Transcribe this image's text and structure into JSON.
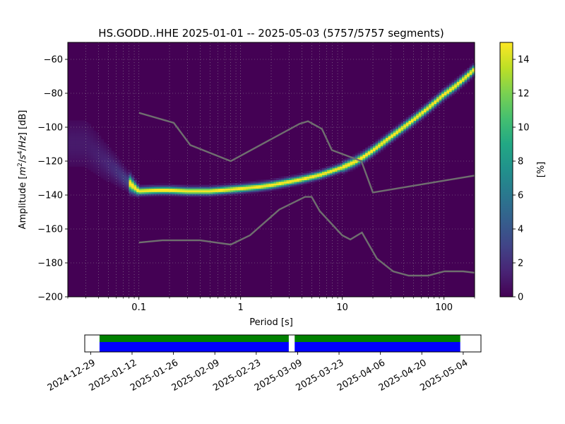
{
  "chart_data": [
    {
      "type": "heatmap",
      "title": "HS.GODD..HHE   2025-01-01 -- 2025-05-03  (5757/5757 segments)",
      "xlabel": "Period [s]",
      "ylabel": "Amplitude [m²/s⁴/Hz] [dB]",
      "ylabel_parts": [
        "Amplitude [",
        "m",
        "2",
        "/",
        "s",
        "4",
        "/",
        "Hz",
        "] [dB]"
      ],
      "x_scale": "log",
      "xlim": [
        0.02,
        200
      ],
      "ylim": [
        -200,
        -50
      ],
      "x_ticks": [
        {
          "value": 0.1,
          "label": "0.1"
        },
        {
          "value": 1,
          "label": "1"
        },
        {
          "value": 10,
          "label": "10"
        },
        {
          "value": 100,
          "label": "100"
        }
      ],
      "y_ticks": [
        {
          "value": -60,
          "label": "−60"
        },
        {
          "value": -80,
          "label": "−80"
        },
        {
          "value": -100,
          "label": "−100"
        },
        {
          "value": -120,
          "label": "−120"
        },
        {
          "value": -140,
          "label": "−140"
        },
        {
          "value": -160,
          "label": "−160"
        },
        {
          "value": -180,
          "label": "−180"
        },
        {
          "value": -200,
          "label": "−200"
        }
      ],
      "grid": true,
      "background_color": "#440154",
      "mode_curve": [
        [
          0.03,
          -110
        ],
        [
          0.04,
          -117
        ],
        [
          0.06,
          -126
        ],
        [
          0.08,
          -133
        ],
        [
          0.1,
          -138
        ],
        [
          0.15,
          -137.5
        ],
        [
          0.2,
          -137.5
        ],
        [
          0.3,
          -138
        ],
        [
          0.5,
          -138
        ],
        [
          0.8,
          -137
        ],
        [
          1,
          -136.5
        ],
        [
          1.5,
          -135.5
        ],
        [
          2,
          -134.5
        ],
        [
          3,
          -132.5
        ],
        [
          4,
          -131
        ],
        [
          6,
          -128.5
        ],
        [
          8,
          -126
        ],
        [
          10,
          -124
        ],
        [
          13,
          -121
        ],
        [
          16,
          -118
        ],
        [
          20,
          -114
        ],
        [
          30,
          -106
        ],
        [
          50,
          -96
        ],
        [
          70,
          -89
        ],
        [
          100,
          -81
        ],
        [
          130,
          -76
        ],
        [
          170,
          -70
        ],
        [
          200,
          -66
        ]
      ],
      "noise_model_upper": [
        [
          0.1,
          -91.5
        ],
        [
          0.22,
          -97.4
        ],
        [
          0.32,
          -110.5
        ],
        [
          0.8,
          -120
        ],
        [
          3.8,
          -98
        ],
        [
          4.6,
          -96.5
        ],
        [
          6.3,
          -101
        ],
        [
          7.9,
          -113.5
        ],
        [
          15.4,
          -120
        ],
        [
          20,
          -138.5
        ],
        [
          200,
          -128.5
        ]
      ],
      "noise_model_lower": [
        [
          0.1,
          -168
        ],
        [
          0.17,
          -166.7
        ],
        [
          0.4,
          -166.7
        ],
        [
          0.8,
          -169.2
        ],
        [
          1.24,
          -163.7
        ],
        [
          2.4,
          -148.6
        ],
        [
          4.3,
          -141.1
        ],
        [
          5.0,
          -141.1
        ],
        [
          6.0,
          -149.4
        ],
        [
          10,
          -163.8
        ],
        [
          12,
          -166.2
        ],
        [
          15.6,
          -162.1
        ],
        [
          21.9,
          -177.5
        ],
        [
          31.6,
          -185
        ],
        [
          45,
          -187.5
        ],
        [
          70,
          -187.5
        ],
        [
          101,
          -185
        ],
        [
          154,
          -185
        ],
        [
          200,
          -185.8
        ]
      ],
      "colorbar": {
        "label": "[%]",
        "min": 0,
        "max": 15,
        "ticks": [
          0,
          2,
          4,
          6,
          8,
          10,
          12,
          14
        ],
        "colormap": "viridis"
      }
    },
    {
      "type": "timeline",
      "range": [
        "2024-12-27",
        "2025-05-10"
      ],
      "ticks": [
        "2024-12-29",
        "2025-01-12",
        "2025-01-26",
        "2025-02-09",
        "2025-02-23",
        "2025-03-09",
        "2025-03-23",
        "2025-04-06",
        "2025-04-20",
        "2025-05-04"
      ],
      "segments": [
        {
          "start": "2025-01-01",
          "end": "2025-03-06",
          "color": "#008000"
        },
        {
          "start": "2025-03-08",
          "end": "2025-05-03",
          "color": "#008000"
        }
      ],
      "coverage": [
        {
          "start": "2025-01-01",
          "end": "2025-03-06",
          "color": "#0000ff"
        },
        {
          "start": "2025-03-08",
          "end": "2025-05-03",
          "color": "#0000ff"
        }
      ]
    }
  ]
}
